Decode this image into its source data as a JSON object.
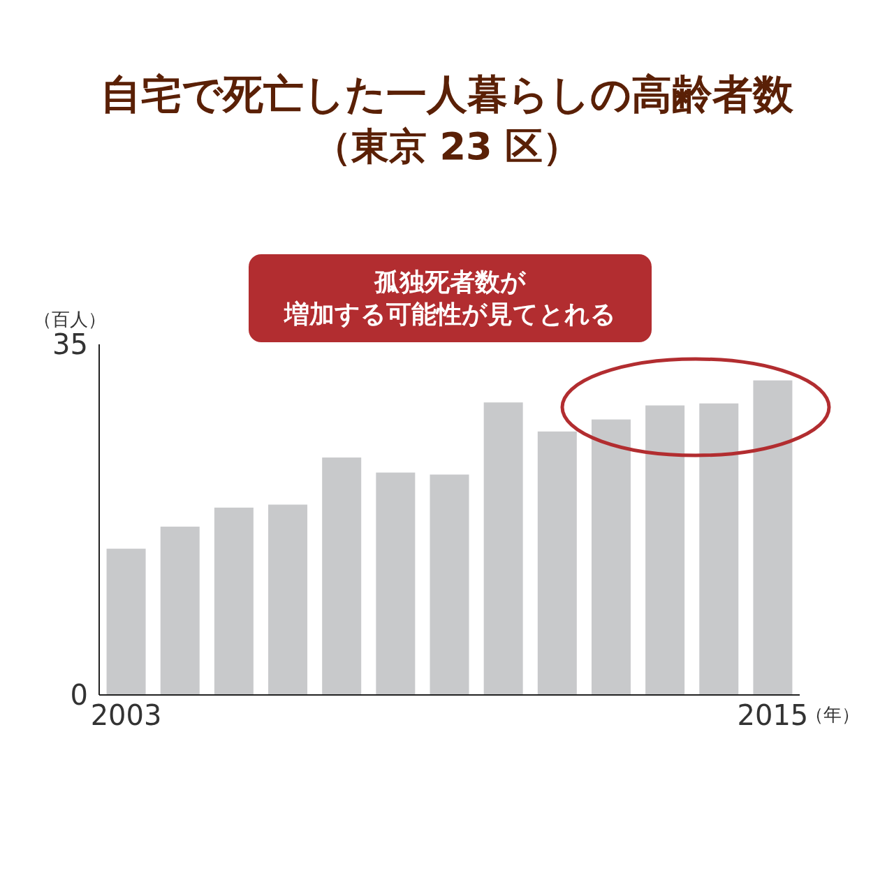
{
  "chart_data": {
    "type": "bar",
    "title": "自宅で死亡した一人暮らしの高齢者数",
    "subtitle": "（東京 23 区）",
    "ylabel": "（百人）",
    "xlabel": "（年）",
    "categories": [
      "2003",
      null,
      null,
      null,
      null,
      null,
      null,
      null,
      null,
      null,
      null,
      null,
      "2015"
    ],
    "values": [
      14.6,
      16.8,
      18.7,
      19.0,
      23.7,
      22.2,
      22.0,
      29.2,
      26.3,
      27.5,
      28.9,
      29.1,
      31.4
    ],
    "color": "#c8c9cb",
    "ylim": [
      0,
      35
    ],
    "yticks": [
      0,
      35
    ],
    "grid": false,
    "annotations": [
      "孤独死者数が",
      "増加する可能性が見てとれる"
    ]
  }
}
